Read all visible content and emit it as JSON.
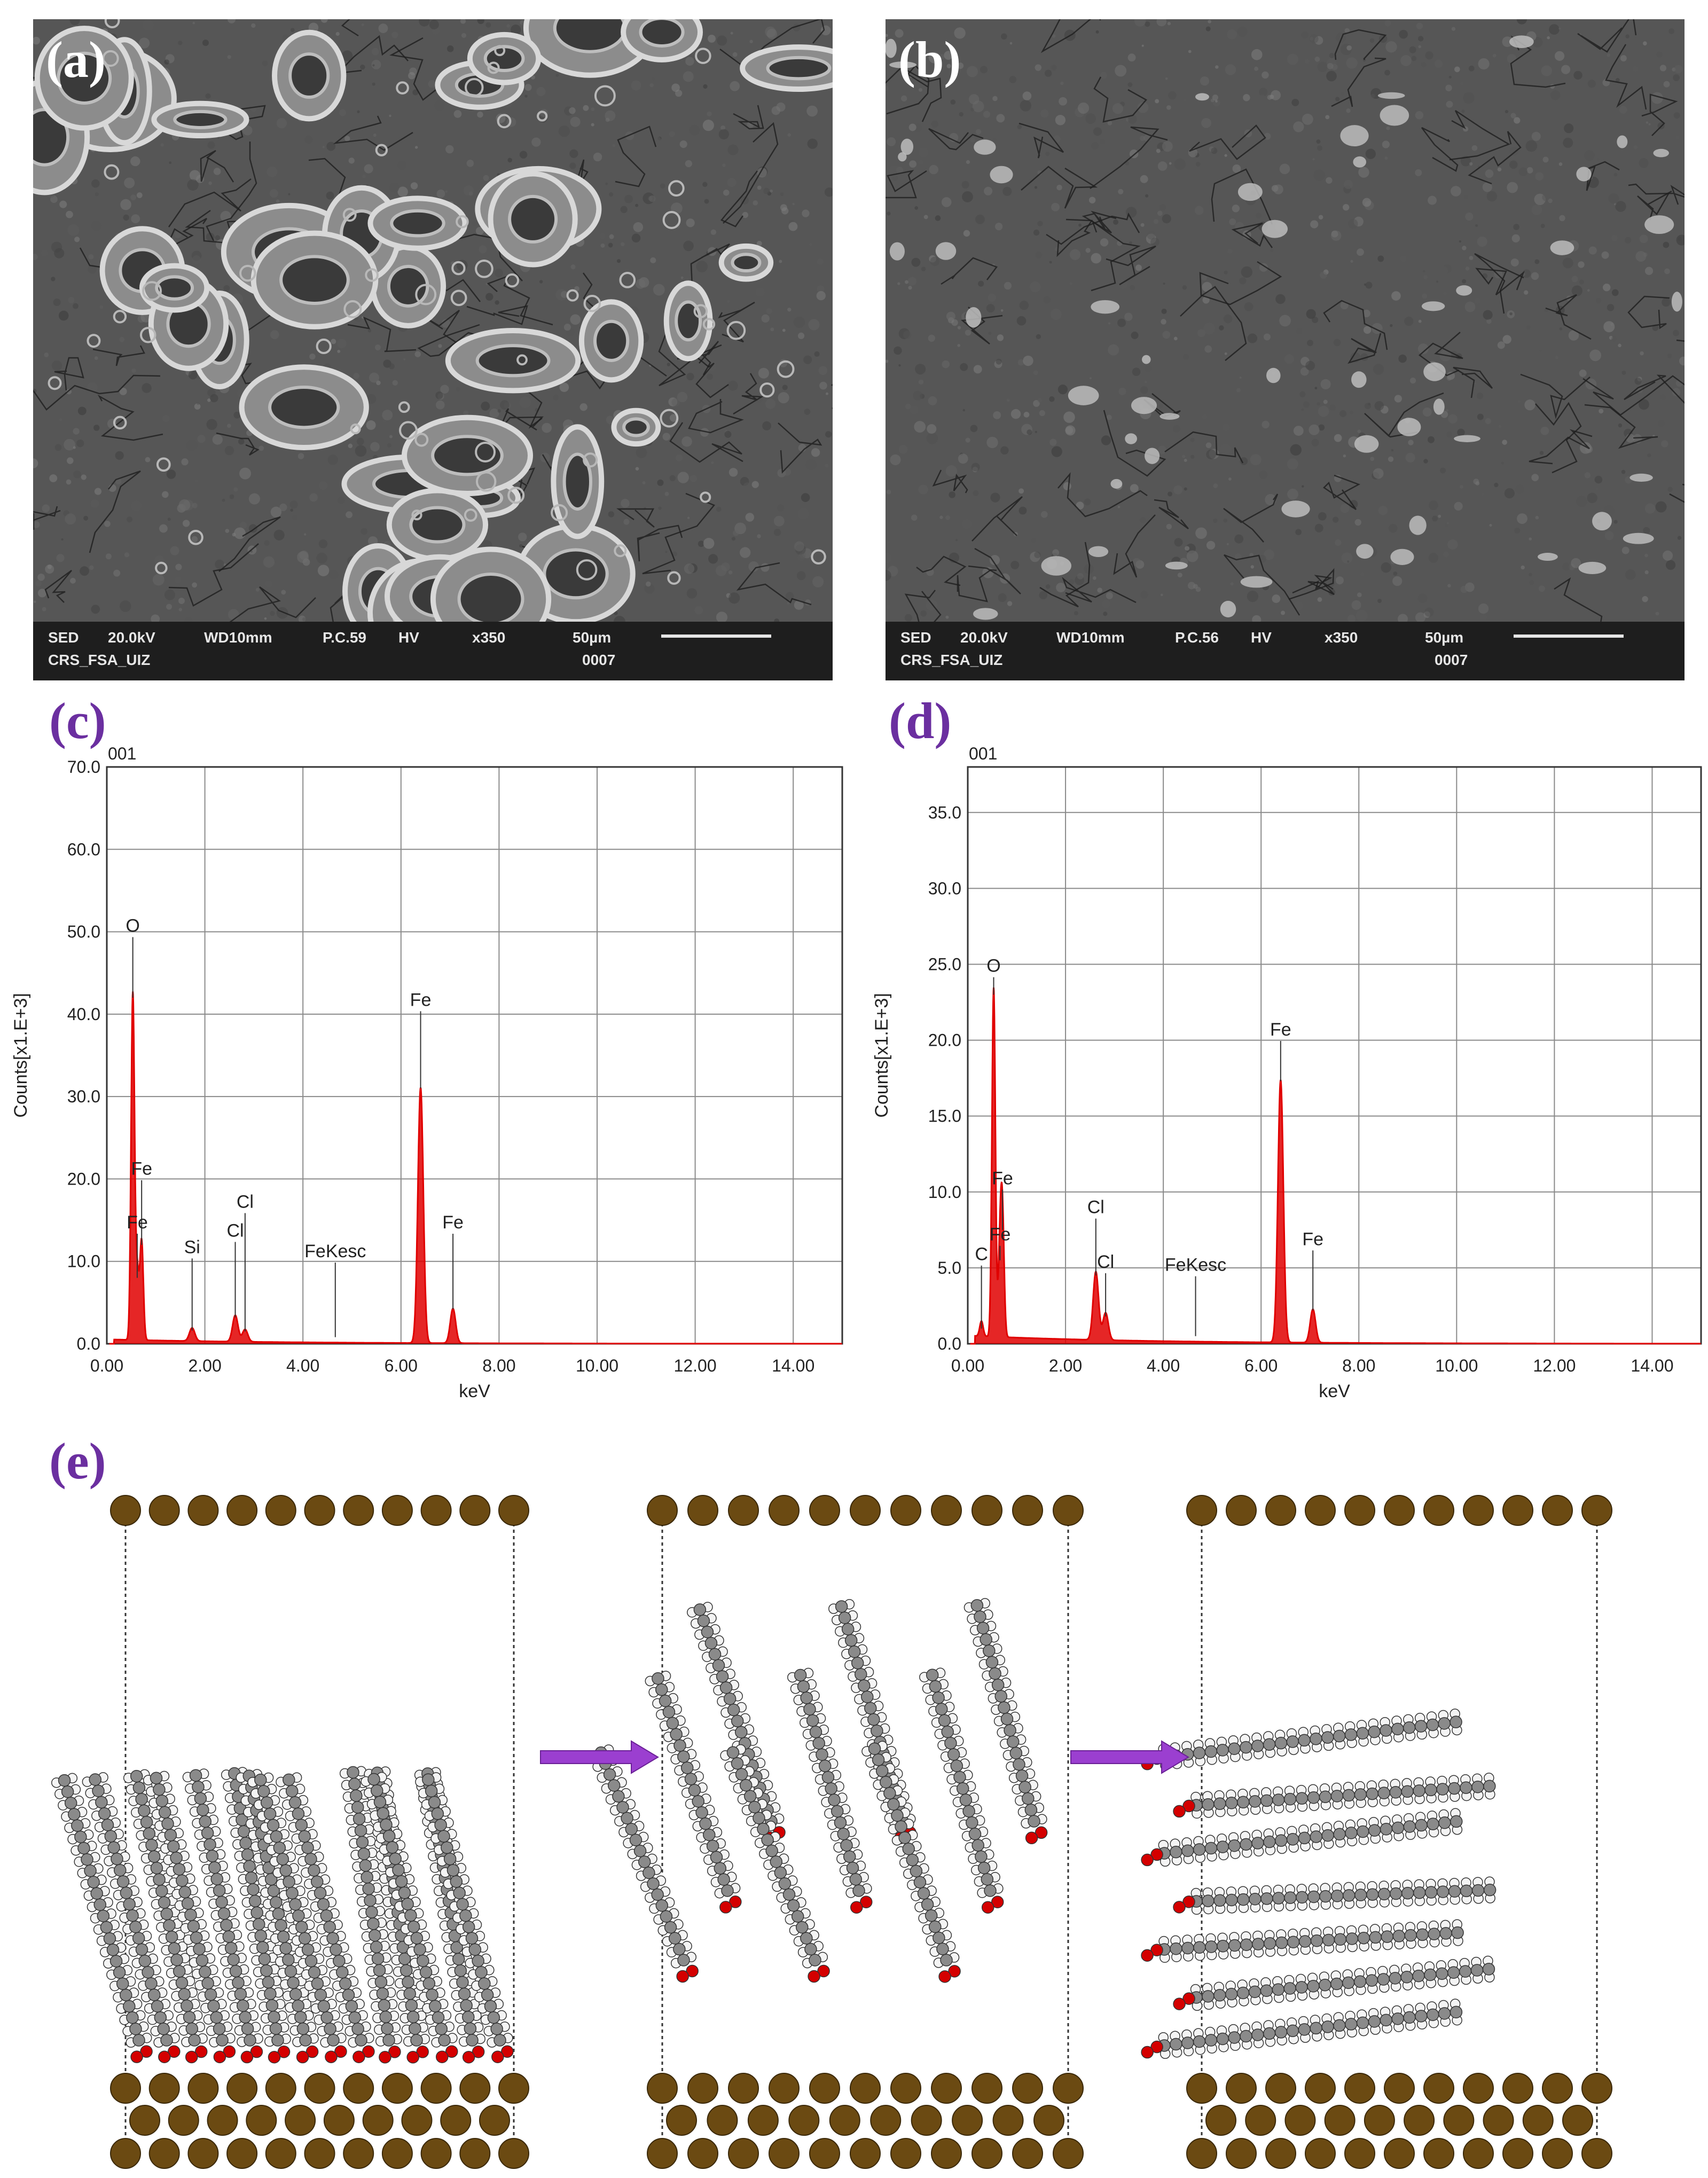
{
  "panels": {
    "a": {
      "label": "(a)"
    },
    "b": {
      "label": "(b)"
    },
    "c": {
      "label": "(c)"
    },
    "d": {
      "label": "(d)"
    },
    "e": {
      "label": "(e)"
    }
  },
  "sem_a": {
    "mode": "SED",
    "voltage": "20.0kV",
    "wd": "WD10mm",
    "pc": "P.C.59",
    "vac": "HV",
    "mag": "x350",
    "scale": "50µm",
    "operator": "CRS_FSA_UIZ",
    "frame": "0007"
  },
  "sem_b": {
    "mode": "SED",
    "voltage": "20.0kV",
    "wd": "WD10mm",
    "pc": "P.C.56",
    "vac": "HV",
    "mag": "x350",
    "scale": "50µm",
    "operator": "CRS_FSA_UIZ",
    "frame": "0007"
  },
  "chart_data": [
    {
      "type": "line",
      "panel": "(c)",
      "spectrum_id": "001",
      "xlabel": "keV",
      "ylabel": "Counts[x1.E+3]",
      "xlim": [
        0,
        15
      ],
      "ylim": [
        0,
        70
      ],
      "x_ticks": [
        "0.00",
        "2.00",
        "4.00",
        "6.00",
        "8.00",
        "10.00",
        "12.00",
        "14.00"
      ],
      "y_ticks": [
        "0.0",
        "10.0",
        "20.0",
        "30.0",
        "40.0",
        "50.0",
        "60.0",
        "70.0"
      ],
      "grid": true,
      "color": "#e00000",
      "peaks": [
        {
          "label": "O",
          "keV": 0.53,
          "counts": 42,
          "label_y": 50
        },
        {
          "label": "Fe",
          "keV": 0.71,
          "counts": 12,
          "label_y": 20.5
        },
        {
          "label": "Fe",
          "keV": 0.62,
          "counts": 8,
          "label_y": 14
        },
        {
          "label": "Si",
          "keV": 1.74,
          "counts": 1.6,
          "label_y": 11
        },
        {
          "label": "Cl",
          "keV": 2.62,
          "counts": 3.2,
          "label_y": 13
        },
        {
          "label": "Cl",
          "keV": 2.82,
          "counts": 1.5,
          "label_y": 16.5
        },
        {
          "label": "FeKesc",
          "keV": 4.66,
          "counts": 0.8,
          "label_y": 10.5
        },
        {
          "label": "Fe",
          "keV": 6.4,
          "counts": 31,
          "label_y": 41
        },
        {
          "label": "Fe",
          "keV": 7.06,
          "counts": 4.2,
          "label_y": 14
        }
      ]
    },
    {
      "type": "line",
      "panel": "(d)",
      "spectrum_id": "001",
      "xlabel": "keV",
      "ylabel": "Counts[x1.E+3]",
      "xlim": [
        0,
        15
      ],
      "ylim": [
        0,
        38
      ],
      "x_ticks": [
        "0.00",
        "2.00",
        "4.00",
        "6.00",
        "8.00",
        "10.00",
        "12.00",
        "14.00"
      ],
      "y_ticks": [
        "0.0",
        "5.0",
        "10.0",
        "15.0",
        "20.0",
        "25.0",
        "30.0",
        "35.0"
      ],
      "grid": true,
      "color": "#e00000",
      "peaks": [
        {
          "label": "C",
          "keV": 0.28,
          "counts": 1.0,
          "label_y": 5.5
        },
        {
          "label": "O",
          "keV": 0.53,
          "counts": 23,
          "label_y": 24.5
        },
        {
          "label": "Fe",
          "keV": 0.71,
          "counts": 7.5,
          "label_y": 10.5
        },
        {
          "label": "Fe",
          "keV": 0.66,
          "counts": 5.5,
          "label_y": 6.8
        },
        {
          "label": "Cl",
          "keV": 2.62,
          "counts": 4.5,
          "label_y": 8.6
        },
        {
          "label": "Cl",
          "keV": 2.82,
          "counts": 1.8,
          "label_y": 5.0
        },
        {
          "label": "FeKesc",
          "keV": 4.66,
          "counts": 0.5,
          "label_y": 4.8
        },
        {
          "label": "Fe",
          "keV": 6.4,
          "counts": 17.3,
          "label_y": 20.3
        },
        {
          "label": "Fe",
          "keV": 7.06,
          "counts": 2.2,
          "label_y": 6.5
        }
      ]
    }
  ],
  "colors": {
    "spectrum": "#e00000",
    "panel_letter_eds": "#6b2fa0",
    "iron_atom": "#6b4a12",
    "carbon_atom": "#8a8a8a",
    "hydrogen_atom": "#f4f4f4",
    "oxygen_atom": "#d40000",
    "arrow": "#9b3fd0"
  }
}
